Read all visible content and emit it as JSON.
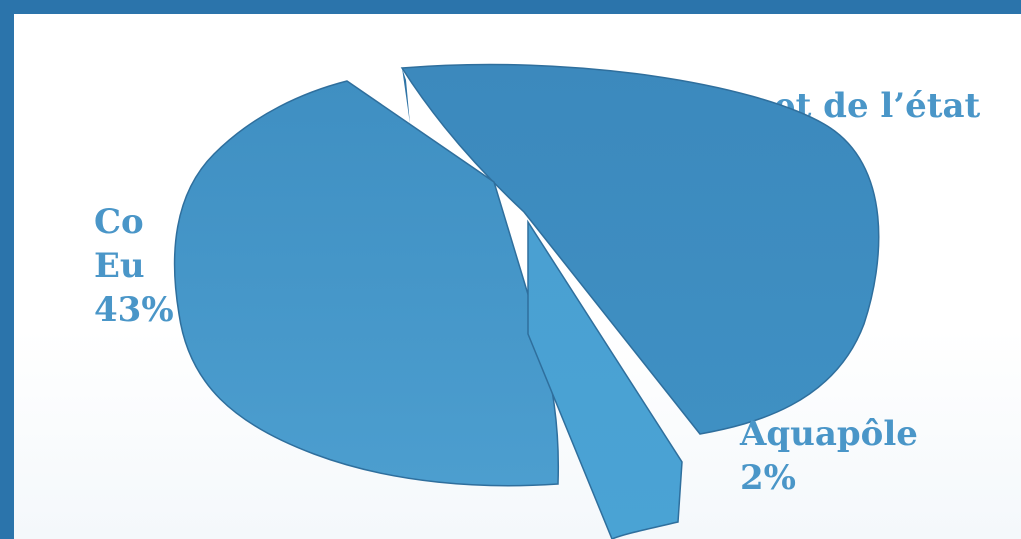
{
  "chart_data": {
    "type": "pie",
    "title": "",
    "slices": [
      {
        "key": "etat",
        "name_lines": [
          "",
          "et de l’état"
        ],
        "value": 55,
        "color": "#3f8dc0"
      },
      {
        "key": "europe",
        "name_lines": [
          "Co",
          "Eu",
          "43%"
        ],
        "value": 43,
        "color": "#4898ca"
      },
      {
        "key": "aquapole",
        "name_lines": [
          "Aquapôle",
          "2%"
        ],
        "value": 2,
        "color": "#4aa0d2"
      }
    ],
    "style": "3d-exploded",
    "legend": "none"
  }
}
